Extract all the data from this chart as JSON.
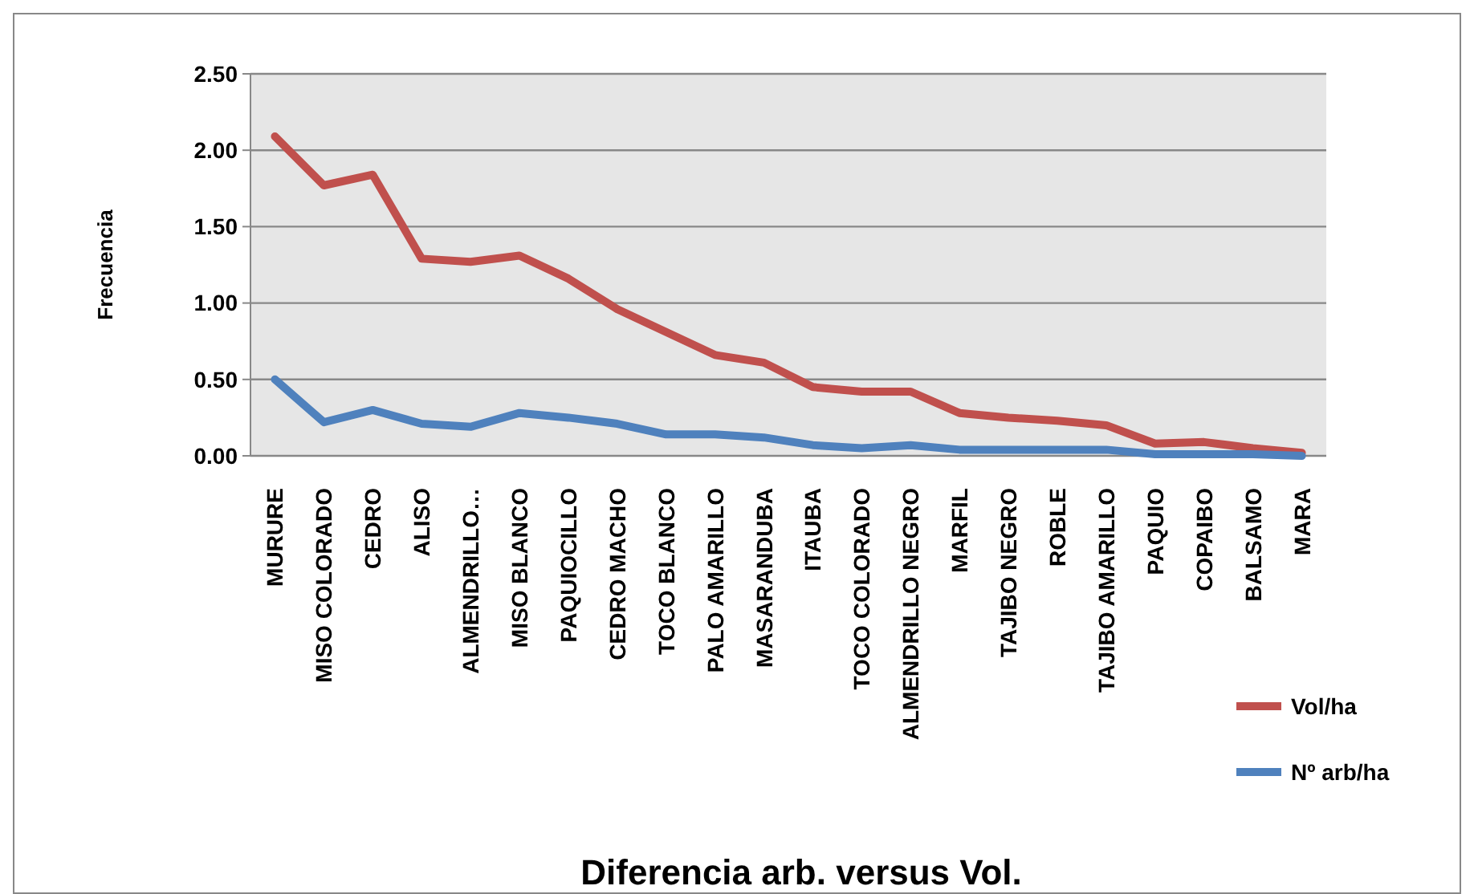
{
  "chart_data": {
    "type": "line",
    "title": "Diferencia arb. versus Vol.",
    "ylabel": "Frecuencia",
    "categories": [
      "MURURE",
      "MISO COLORADO",
      "CEDRO",
      "ALISO",
      "ALMENDRILLO…",
      "MISO BLANCO",
      "PAQUIOCILLO",
      "CEDRO MACHO",
      "TOCO BLANCO",
      "PALO AMARILLO",
      "MASARANDUBA",
      "ITAUBA",
      "TOCO COLORADO",
      "ALMENDRILLO NEGRO",
      "MARFIL",
      "TAJIBO NEGRO",
      "ROBLE",
      "TAJIBO AMARILLO",
      "PAQUIO",
      "COPAIBO",
      "BALSAMO",
      "MARA"
    ],
    "series": [
      {
        "name": "Vol/ha",
        "color": "#c0504d",
        "values": [
          2.09,
          1.77,
          1.84,
          1.29,
          1.27,
          1.31,
          1.16,
          0.96,
          0.81,
          0.66,
          0.61,
          0.45,
          0.42,
          0.42,
          0.28,
          0.25,
          0.23,
          0.2,
          0.08,
          0.09,
          0.05,
          0.02
        ]
      },
      {
        "name": "Nº arb/ha",
        "color": "#4f81bd",
        "values": [
          0.5,
          0.22,
          0.3,
          0.21,
          0.19,
          0.28,
          0.25,
          0.21,
          0.14,
          0.14,
          0.12,
          0.07,
          0.05,
          0.07,
          0.04,
          0.04,
          0.04,
          0.04,
          0.01,
          0.01,
          0.01,
          0
        ]
      }
    ],
    "ylim": [
      0,
      2.5
    ],
    "yticks": [
      {
        "value": 0,
        "label": "0.00"
      },
      {
        "value": 0.5,
        "label": "0.50"
      },
      {
        "value": 1,
        "label": "1.00"
      },
      {
        "value": 1.5,
        "label": "1.50"
      },
      {
        "value": 2,
        "label": "2.00"
      },
      {
        "value": 2.5,
        "label": "2.50"
      }
    ],
    "grid": "y",
    "legend": "right",
    "marker": "none"
  }
}
